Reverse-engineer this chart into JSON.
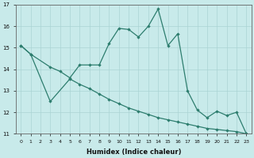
{
  "xlabel": "Humidex (Indice chaleur)",
  "upper_x": [
    0,
    1,
    3,
    4,
    5,
    6,
    7,
    8,
    9,
    10,
    11,
    12,
    13,
    14,
    15,
    16,
    17,
    18,
    19,
    20,
    21,
    22,
    23
  ],
  "upper_y": [
    15.1,
    14.7,
    14.1,
    13.9,
    13.6,
    14.2,
    14.2,
    14.2,
    15.2,
    15.9,
    15.85,
    15.5,
    16.0,
    16.8,
    15.1,
    15.65,
    13.0,
    12.1,
    11.75,
    12.05,
    11.85,
    12.0,
    11.0
  ],
  "lower_x": [
    0,
    1,
    3,
    5,
    6,
    7,
    8,
    9,
    10,
    11,
    12,
    13,
    14,
    15,
    16,
    17,
    18,
    19,
    20,
    21,
    22,
    23
  ],
  "lower_y": [
    15.1,
    14.7,
    12.5,
    13.55,
    13.3,
    13.1,
    12.85,
    12.6,
    12.4,
    12.2,
    12.05,
    11.9,
    11.75,
    11.65,
    11.55,
    11.45,
    11.35,
    11.25,
    11.2,
    11.15,
    11.1,
    11.0
  ],
  "line_color": "#2d7d6e",
  "bg_color": "#c8eaea",
  "grid_color": "#aad4d4",
  "ylim": [
    11,
    17
  ],
  "yticks": [
    11,
    12,
    13,
    14,
    15,
    16,
    17
  ],
  "xlim": [
    -0.5,
    23.5
  ],
  "figwidth": 3.2,
  "figheight": 2.0,
  "dpi": 100
}
